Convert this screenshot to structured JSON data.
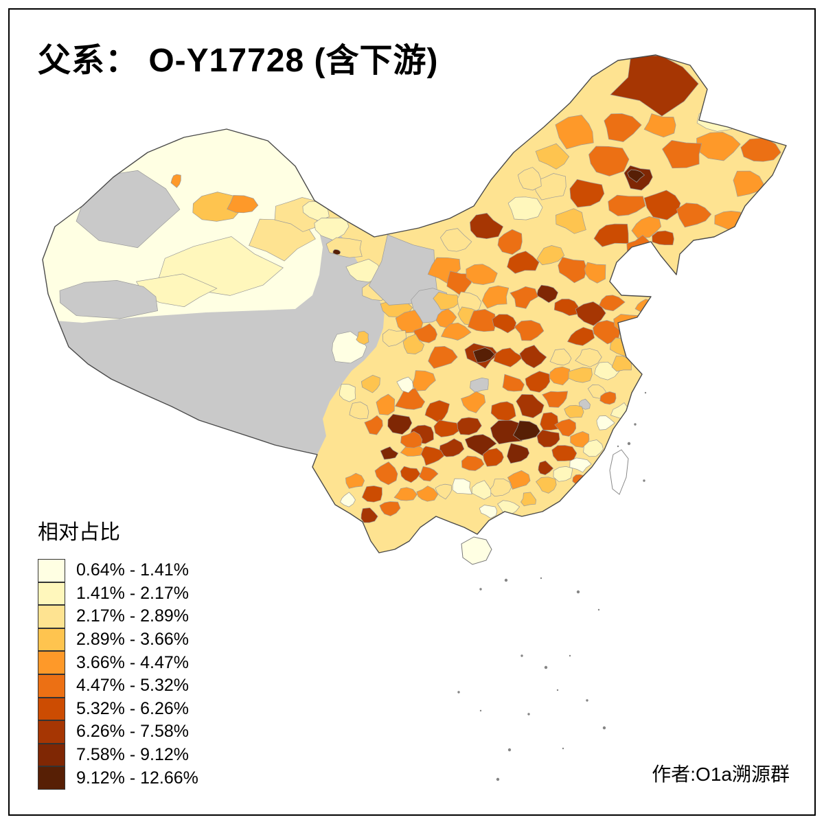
{
  "page": {
    "title": "父系： O-Y17728 (含下游)",
    "attribution": "作者:O1a溯源群",
    "background": "#FFFFFF",
    "border_color": "#000000"
  },
  "legend": {
    "title": "相对占比",
    "no_data_color": "#C9C9C9",
    "classes": [
      {
        "label": "0.64% - 1.41%",
        "color": "#FFFFE3"
      },
      {
        "label": "1.41% - 2.17%",
        "color": "#FFF7BC"
      },
      {
        "label": "2.17% - 2.89%",
        "color": "#FEE391"
      },
      {
        "label": "2.89% - 3.66%",
        "color": "#FEC44F"
      },
      {
        "label": "3.66% - 4.47%",
        "color": "#FE9929"
      },
      {
        "label": "4.47% - 5.32%",
        "color": "#EC7014"
      },
      {
        "label": "5.32% - 6.26%",
        "color": "#CC4C02"
      },
      {
        "label": "6.26% - 7.58%",
        "color": "#A63603"
      },
      {
        "label": "7.58% - 9.12%",
        "color": "#7F2704"
      },
      {
        "label": "9.12% - 12.66%",
        "color": "#571F05"
      }
    ]
  },
  "map": {
    "outline_color": "#4A4A4A",
    "sea_color": "#FFFFFF"
  }
}
